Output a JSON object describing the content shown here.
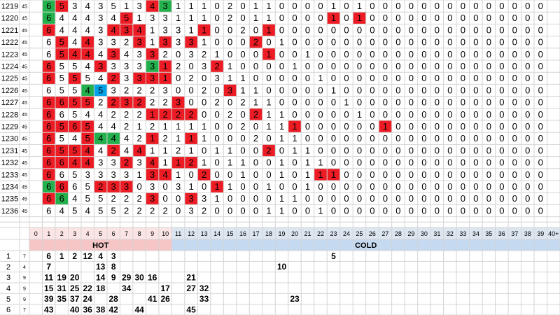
{
  "top_rows": [
    {
      "id": "1219",
      "n": "45",
      "hot": [
        6,
        5,
        3,
        4,
        3,
        5,
        1,
        3,
        4,
        3
      ],
      "hot_fill": "gr......rg",
      "cold": [
        1,
        1,
        1,
        0,
        2,
        0,
        1,
        1,
        0,
        0,
        0,
        0,
        1,
        0,
        1,
        0,
        0,
        0,
        0,
        0,
        0,
        0,
        0,
        0,
        0,
        0,
        0,
        0,
        0
      ]
    },
    {
      "id": "1220",
      "n": "45",
      "hot": [
        6,
        4,
        4,
        4,
        3,
        4,
        5,
        1,
        3,
        3
      ],
      "hot_fill": "g.....r",
      "cold": [
        1,
        1,
        1,
        0,
        2,
        0,
        1,
        1,
        0,
        0,
        0,
        0,
        1,
        0,
        1,
        0,
        0,
        0,
        0,
        0,
        0,
        0,
        0,
        0,
        0,
        0,
        0,
        0,
        0
      ],
      "cold_fill": "............r.r"
    },
    {
      "id": "1221",
      "n": "45",
      "hot": [
        6,
        4,
        4,
        4,
        3,
        4,
        3,
        4,
        1,
        3
      ],
      "hot_fill": "r....rrr",
      "cold": [
        3,
        1,
        1,
        0,
        0,
        2,
        0,
        1,
        0,
        0,
        0,
        0,
        0,
        0,
        0,
        0,
        0,
        0,
        0,
        0,
        0,
        0,
        0,
        0,
        0,
        0,
        0,
        0,
        0
      ],
      "cold_fill": "..r....r"
    },
    {
      "id": "1222",
      "n": "45",
      "hot": [
        6,
        5,
        4,
        4,
        3,
        3,
        2,
        3,
        1,
        3
      ],
      "hot_fill": ".r.r...r.r",
      "cold": [
        3,
        3,
        1,
        0,
        0,
        0,
        2,
        0,
        1,
        0,
        0,
        0,
        0,
        0,
        0,
        0,
        0,
        0,
        0,
        0,
        0,
        0,
        0,
        0,
        0,
        0,
        0,
        0,
        0
      ],
      "cold_fill": ".r....r"
    },
    {
      "id": "1223",
      "n": "45",
      "hot": [
        6,
        5,
        4,
        4,
        4,
        3,
        4,
        3,
        3,
        2
      ],
      "hot_fill": ".rrr.r..r",
      "cold": [
        0,
        3,
        2,
        1,
        0,
        0,
        0,
        1,
        0,
        0,
        1,
        0,
        0,
        0,
        0,
        0,
        0,
        0,
        0,
        0,
        0,
        0,
        0,
        0,
        0,
        0,
        0,
        0,
        0
      ],
      "cold_fill": ".......r"
    },
    {
      "id": "1224",
      "n": "45",
      "hot": [
        6,
        5,
        5,
        4,
        3,
        3,
        3,
        3,
        3,
        1
      ],
      "hot_fill": "r...r...gr",
      "cold": [
        2,
        0,
        3,
        2,
        1,
        0,
        0,
        0,
        0,
        1,
        0,
        0,
        0,
        0,
        0,
        0,
        0,
        0,
        0,
        0,
        0,
        0,
        0,
        0,
        0,
        0,
        0,
        0,
        0
      ],
      "cold_fill": "...r"
    },
    {
      "id": "1225",
      "n": "45",
      "hot": [
        6,
        5,
        5,
        5,
        4,
        2,
        3,
        3,
        3,
        1
      ],
      "hot_fill": "r.r..r.rrr",
      "cold": [
        0,
        2,
        0,
        3,
        1,
        1,
        0,
        0,
        0,
        0,
        0,
        1,
        0,
        0,
        0,
        0,
        0,
        0,
        0,
        0,
        0,
        0,
        0,
        0,
        0,
        0,
        0,
        0,
        0
      ]
    },
    {
      "id": "1226",
      "n": "45",
      "hot": [
        6,
        5,
        5,
        4,
        5,
        3,
        2,
        2,
        2,
        3
      ],
      "hot_fill": "...gb",
      "cold": [
        0,
        0,
        2,
        0,
        3,
        1,
        1,
        0,
        0,
        0,
        0,
        0,
        1,
        0,
        0,
        0,
        0,
        0,
        0,
        0,
        0,
        0,
        0,
        0,
        0,
        0,
        0,
        0,
        0
      ],
      "cold_fill": "....r"
    },
    {
      "id": "1227",
      "n": "45",
      "hot": [
        6,
        6,
        5,
        5,
        2,
        2,
        3,
        2,
        2,
        2
      ],
      "hot_fill": "rrrr.rrr",
      "cold": [
        3,
        0,
        0,
        2,
        0,
        2,
        1,
        1,
        0,
        0,
        0,
        0,
        0,
        1,
        0,
        0,
        0,
        0,
        0,
        0,
        0,
        0,
        0,
        0,
        0,
        0,
        0,
        0,
        0
      ],
      "cold_fill": "r"
    },
    {
      "id": "1228",
      "n": "45",
      "hot": [
        6,
        6,
        5,
        4,
        4,
        2,
        2,
        2,
        1,
        2
      ],
      "hot_fill": "r.......rr",
      "cold": [
        2,
        2,
        0,
        0,
        2,
        0,
        2,
        1,
        1,
        0,
        0,
        0,
        0,
        0,
        1,
        0,
        0,
        0,
        0,
        0,
        0,
        0,
        0,
        0,
        0,
        0,
        0,
        0,
        0
      ],
      "cold_fill": "rr....r"
    },
    {
      "id": "1229",
      "n": "45",
      "hot": [
        6,
        5,
        6,
        5,
        4,
        4,
        2,
        1,
        2,
        1
      ],
      "hot_fill": "rrrr",
      "cold": [
        1,
        1,
        1,
        0,
        0,
        2,
        0,
        1,
        1,
        1,
        0,
        0,
        0,
        0,
        0,
        0,
        1,
        0,
        0,
        0,
        0,
        0,
        0,
        0,
        0,
        0,
        0,
        0,
        0
      ],
      "cold_fill": ".........r......r"
    },
    {
      "id": "1230",
      "n": "45",
      "hot": [
        6,
        5,
        4,
        5,
        4,
        4,
        4,
        2,
        1,
        2
      ],
      "hot_fill": "r..rgg..r",
      "cold": [
        1,
        1,
        1,
        0,
        0,
        0,
        2,
        0,
        1,
        1,
        0,
        0,
        0,
        0,
        0,
        0,
        0,
        0,
        0,
        0,
        0,
        0,
        0,
        0,
        0,
        0,
        0,
        0,
        0
      ],
      "cold_fill": ".r"
    },
    {
      "id": "1231",
      "n": "45",
      "hot": [
        6,
        5,
        5,
        4,
        4,
        2,
        4,
        4,
        1,
        1
      ],
      "hot_fill": "rrrr.r.r",
      "cold": [
        2,
        1,
        0,
        1,
        1,
        0,
        0,
        2,
        0,
        1,
        1,
        0,
        0,
        0,
        0,
        0,
        0,
        0,
        0,
        0,
        0,
        0,
        0,
        0,
        0,
        0,
        0,
        0,
        0
      ],
      "cold_fill": ".......r"
    },
    {
      "id": "1232",
      "n": "45",
      "hot": [
        6,
        6,
        4,
        4,
        3,
        3,
        2,
        3,
        4,
        1
      ],
      "hot_fill": "rrrr..r.r",
      "cold": [
        1,
        2,
        1,
        0,
        1,
        1,
        0,
        0,
        1,
        0,
        1,
        1,
        0,
        0,
        0,
        0,
        0,
        0,
        0,
        0,
        0,
        0,
        0,
        0,
        0,
        0,
        0,
        0,
        0
      ],
      "cold_fill": "rr"
    },
    {
      "id": "1233",
      "n": "45",
      "hot": [
        6,
        6,
        5,
        3,
        3,
        3,
        3,
        1,
        3,
        4
      ],
      "hot_fill": "r.......rr",
      "cold": [
        1,
        0,
        2,
        0,
        0,
        1,
        0,
        0,
        1,
        0,
        1,
        1,
        1,
        0,
        0,
        0,
        0,
        0,
        0,
        0,
        0,
        0,
        0,
        0,
        0,
        0,
        0,
        0,
        0
      ],
      "cold_fill": "..r........rr"
    },
    {
      "id": "1234",
      "n": "45",
      "hot": [
        6,
        6,
        6,
        5,
        2,
        3,
        3,
        0,
        3,
        0
      ],
      "hot_fill": "gr..rrr",
      "cold": [
        3,
        1,
        0,
        1,
        1,
        0,
        0,
        1,
        0,
        0,
        1,
        0,
        0,
        0,
        0,
        0,
        0,
        0,
        0,
        0,
        0,
        0,
        0,
        0,
        0,
        0,
        0,
        0,
        0
      ],
      "cold_fill": "...r"
    },
    {
      "id": "1235",
      "n": "45",
      "hot": [
        6,
        6,
        4,
        5,
        5,
        2,
        2,
        2,
        3,
        0
      ],
      "hot_fill": "rg......r",
      "cold": [
        0,
        3,
        3,
        1,
        0,
        0,
        0,
        0,
        1,
        1,
        0,
        0,
        0,
        0,
        0,
        0,
        0,
        0,
        0,
        0,
        0,
        0,
        0,
        0,
        0,
        0,
        0,
        0,
        0
      ],
      "cold_fill": ".r"
    },
    {
      "id": "1236",
      "n": "45",
      "hot": [
        6,
        4,
        5,
        4,
        5,
        5,
        2,
        2,
        2,
        2
      ],
      "cold": [
        0,
        3,
        2,
        0,
        0,
        0,
        0,
        1,
        1,
        0,
        0,
        1,
        0,
        0,
        0,
        0,
        0,
        0,
        0,
        0,
        0,
        0,
        0,
        0,
        0,
        0,
        0,
        0,
        0
      ]
    }
  ],
  "header": {
    "columns": [
      0,
      1,
      2,
      3,
      4,
      5,
      6,
      7,
      8,
      9,
      10,
      11,
      12,
      13,
      14,
      15,
      16,
      17,
      18,
      19,
      20,
      21,
      22,
      23,
      24,
      25,
      26,
      27,
      28,
      29,
      30,
      31,
      32,
      33,
      34,
      35,
      36,
      37,
      38,
      39,
      "40+"
    ],
    "hot": "HOT",
    "cold": "COLD"
  },
  "bottom_rows": [
    {
      "id": "1",
      "n": "7",
      "cells": [
        null,
        6,
        1,
        2,
        12,
        4,
        3,
        null,
        null,
        null,
        null,
        null,
        null,
        null,
        null,
        null,
        null,
        null,
        null,
        null,
        null,
        null,
        null,
        5,
        null,
        null,
        null,
        null,
        null,
        null,
        null,
        null,
        null,
        null,
        null,
        null,
        null,
        null,
        null,
        null,
        null
      ]
    },
    {
      "id": "2",
      "n": "4",
      "cells": [
        null,
        7,
        null,
        null,
        null,
        13,
        8,
        null,
        null,
        null,
        null,
        null,
        null,
        null,
        null,
        null,
        null,
        null,
        null,
        10,
        null,
        null,
        null,
        null,
        null,
        null,
        null,
        null,
        null,
        null,
        null,
        null,
        null,
        null,
        null,
        null,
        null,
        null,
        null,
        null,
        null
      ]
    },
    {
      "id": "3",
      "n": "9",
      "cells": [
        null,
        11,
        19,
        20,
        null,
        14,
        9,
        29,
        30,
        16,
        null,
        null,
        21,
        null,
        null,
        null,
        null,
        null,
        null,
        null,
        null,
        null,
        null,
        null,
        null,
        null,
        null,
        null,
        null,
        null,
        null,
        null,
        null,
        null,
        null,
        null,
        null,
        null,
        null,
        null,
        null
      ]
    },
    {
      "id": "4",
      "n": "9",
      "cells": [
        null,
        15,
        31,
        25,
        22,
        18,
        null,
        34,
        null,
        null,
        17,
        null,
        27,
        32,
        null,
        null,
        null,
        null,
        null,
        null,
        null,
        null,
        null,
        null,
        null,
        null,
        null,
        null,
        null,
        null,
        null,
        null,
        null,
        null,
        null,
        null,
        null,
        null,
        null,
        null,
        null
      ]
    },
    {
      "id": "5",
      "n": "9",
      "cells": [
        null,
        39,
        35,
        37,
        24,
        null,
        28,
        null,
        null,
        41,
        26,
        null,
        null,
        33,
        null,
        null,
        null,
        null,
        null,
        null,
        23,
        null,
        null,
        null,
        null,
        null,
        null,
        null,
        null,
        null,
        null,
        null,
        null,
        null,
        null,
        null,
        null,
        null,
        null,
        null,
        null
      ]
    },
    {
      "id": "6",
      "n": "7",
      "cells": [
        null,
        43,
        null,
        40,
        36,
        38,
        42,
        null,
        44,
        null,
        null,
        null,
        45,
        null,
        null,
        null,
        null,
        null,
        null,
        null,
        null,
        null,
        null,
        null,
        null,
        null,
        null,
        null,
        null,
        null,
        null,
        null,
        null,
        null,
        null,
        null,
        null,
        null,
        null,
        null,
        null
      ]
    }
  ]
}
